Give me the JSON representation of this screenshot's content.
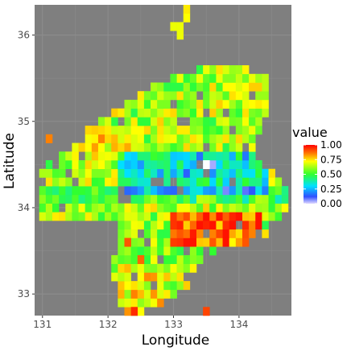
{
  "chart_data": {
    "type": "heatmap",
    "title": "",
    "xlabel": "Longitude",
    "ylabel": "Latitude",
    "xlim": [
      130.88,
      134.8
    ],
    "ylim": [
      32.75,
      36.35
    ],
    "x_ticks": [
      131,
      132,
      133,
      134
    ],
    "x_tick_labels": [
      "131",
      "132",
      "133",
      "134"
    ],
    "y_ticks": [
      33,
      34,
      35,
      36
    ],
    "y_tick_labels": [
      "33",
      "34",
      "35",
      "36"
    ],
    "grid": true,
    "panel_background": "#7f7f7f",
    "legend": {
      "title": "value",
      "position": "right",
      "breaks": [
        1.0,
        0.75,
        0.5,
        0.25,
        0.0
      ],
      "break_labels": [
        "1.00",
        "0.75",
        "0.50",
        "0.25",
        "0.00"
      ],
      "gradient": [
        "#e0d8ff",
        "#3050ff",
        "#00e0ff",
        "#30ff30",
        "#ffff00",
        "#ff7700",
        "#ff0000"
      ]
    },
    "cell_size_deg": 0.1,
    "cells_note": "x = cell center longitude, y = cell center latitude, v = value (0-1)",
    "cells": []
  },
  "annotations": {
    "legend_title": "value",
    "xlabel": "Longitude",
    "ylabel": "Latitude"
  }
}
